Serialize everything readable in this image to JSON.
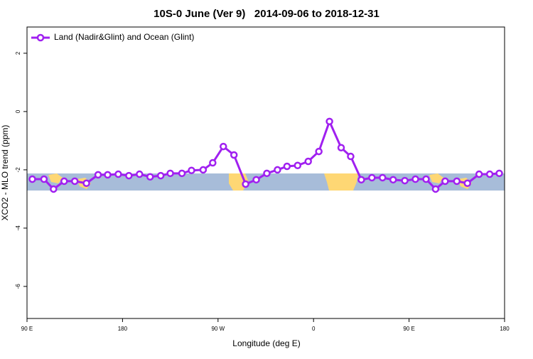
{
  "chart_data": {
    "type": "line",
    "title": "10S-0 June (Ver 9)   2014-09-06 to 2018-12-31",
    "x_label": "Longitude (deg E)",
    "y_label": "XCO2 - MLO trend (ppm)",
    "xlim": [
      90,
      540
    ],
    "ylim": [
      -7.1,
      2.9
    ],
    "xticks": [
      {
        "value": 90,
        "label": "90 E"
      },
      {
        "value": 180,
        "label": "180"
      },
      {
        "value": 270,
        "label": "90 W"
      },
      {
        "value": 360,
        "label": "0"
      },
      {
        "value": 450,
        "label": "90 E"
      },
      {
        "value": 540,
        "label": "180"
      }
    ],
    "yticks": [
      2,
      0,
      -2,
      -4,
      -6
    ],
    "legend": "top-left",
    "x": [
      95,
      106,
      115,
      125,
      135,
      146,
      157,
      166,
      176,
      186,
      196,
      206,
      216,
      225,
      236,
      245,
      256,
      265,
      275,
      285,
      296,
      306,
      316,
      326,
      335,
      345,
      355,
      365,
      375,
      386,
      395,
      405,
      415,
      425,
      435,
      446,
      456,
      466,
      475,
      484,
      495,
      505,
      516,
      526,
      535
    ],
    "series": [
      {
        "name": "Land (Nadir&Glint) and Ocean (Glint)",
        "color": "#a020f0",
        "values": [
          -2.32,
          -2.32,
          -2.66,
          -2.39,
          -2.39,
          -2.46,
          -2.17,
          -2.17,
          -2.15,
          -2.2,
          -2.15,
          -2.24,
          -2.2,
          -2.12,
          -2.12,
          -2.02,
          -2.0,
          -1.76,
          -1.2,
          -1.49,
          -2.49,
          -2.34,
          -2.12,
          -2.0,
          -1.88,
          -1.85,
          -1.71,
          -1.37,
          -0.34,
          -1.24,
          -1.54,
          -2.34,
          -2.27,
          -2.27,
          -2.34,
          -2.37,
          -2.32,
          -2.32,
          -2.66,
          -2.39,
          -2.39,
          -2.46,
          -2.15,
          -2.15,
          -2.12
        ]
      }
    ]
  }
}
